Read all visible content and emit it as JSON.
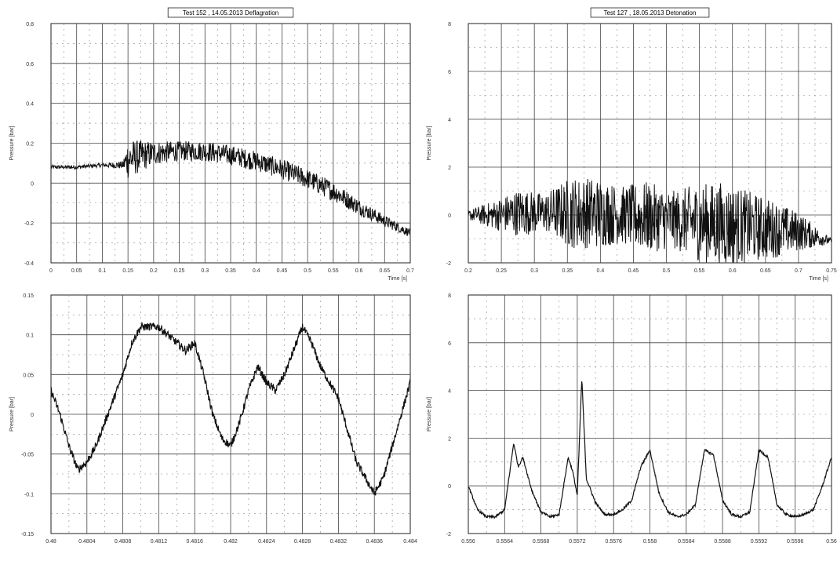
{
  "chart_data": [
    {
      "type": "line",
      "title": "Test 152 , 14.05.2013 Deflagration",
      "xlabel": "Time [s]",
      "ylabel": "Pressure [bar]",
      "xlim": [
        0,
        0.7
      ],
      "ylim": [
        -0.4,
        0.8
      ],
      "x_ticks": [
        "0",
        "0.05",
        "0.1",
        "0.15",
        "0.2",
        "0.25",
        "0.3",
        "0.35",
        "0.4",
        "0.45",
        "0.5",
        "0.55",
        "0.6",
        "0.65",
        "0.7"
      ],
      "y_ticks": [
        "0.8",
        "0.6",
        "0.4",
        "0.2",
        "0",
        "-0.2",
        "-0.4"
      ],
      "grid": true,
      "series": [
        {
          "x": [
            0,
            0.05,
            0.1,
            0.14,
            0.15,
            0.2,
            0.25,
            0.3,
            0.35,
            0.4,
            0.45,
            0.5,
            0.55,
            0.6,
            0.65,
            0.7
          ],
          "y": [
            0.08,
            0.08,
            0.09,
            0.09,
            0.12,
            0.15,
            0.16,
            0.16,
            0.14,
            0.11,
            0.07,
            0.02,
            -0.04,
            -0.12,
            -0.19,
            -0.25
          ],
          "noise": [
            0.01,
            0.01,
            0.01,
            0.02,
            0.1,
            0.06,
            0.05,
            0.05,
            0.05,
            0.05,
            0.05,
            0.05,
            0.05,
            0.04,
            0.03,
            0.02
          ]
        }
      ]
    },
    {
      "type": "line",
      "title": "Test 127 , 18.05.2013 Detonation",
      "xlabel": "Time [s]",
      "ylabel": "Pressure [bar]",
      "xlim": [
        0.2,
        0.77
      ],
      "ylim": [
        -2,
        8
      ],
      "x_ticks": [
        "0.2",
        "0.25",
        "0.3",
        "0.35",
        "0.4",
        "0.45",
        "0.5",
        "0.55",
        "0.6",
        "0.65",
        "0.7",
        "0.75"
      ],
      "y_ticks": [
        "8",
        "6",
        "4",
        "2",
        "0",
        "-2"
      ],
      "grid": true,
      "series": [
        {
          "x": [
            0.2,
            0.24,
            0.28,
            0.32,
            0.36,
            0.4,
            0.44,
            0.48,
            0.52,
            0.56,
            0.6,
            0.64,
            0.68,
            0.72,
            0.77
          ],
          "y": [
            0,
            0,
            0.1,
            0.1,
            0.1,
            0.1,
            0,
            -0.1,
            -0.2,
            -0.3,
            -0.4,
            -0.5,
            -0.6,
            -0.7,
            -1.1
          ],
          "noise": [
            0.2,
            0.6,
            1.0,
            0.8,
            1.5,
            1.5,
            1.2,
            1.5,
            1.2,
            1.6,
            1.8,
            1.5,
            1.2,
            0.8,
            0.1
          ]
        }
      ]
    },
    {
      "type": "line",
      "title": "",
      "xlabel": "",
      "ylabel": "Pressure [bar]",
      "xlim": [
        0.48,
        0.484
      ],
      "ylim": [
        -0.15,
        0.15
      ],
      "x_ticks": [
        "0.48",
        "0.4804",
        "0.4808",
        "0.4812",
        "0.4816",
        "0.482",
        "0.4824",
        "0.4828",
        "0.4832",
        "0.4836",
        "0.484"
      ],
      "y_ticks": [
        "0.15",
        "0.1",
        "0.05",
        "0",
        "-0.05",
        "-0.1",
        "-0.15"
      ],
      "grid": true,
      "series": [
        {
          "x": [
            0.48,
            0.4801,
            0.4802,
            0.4803,
            0.4804,
            0.4805,
            0.4806,
            0.4807,
            0.4808,
            0.4809,
            0.481,
            0.4811,
            0.4812,
            0.4813,
            0.4814,
            0.4815,
            0.4816,
            0.4817,
            0.4818,
            0.4819,
            0.482,
            0.4821,
            0.4822,
            0.4823,
            0.4824,
            0.4825,
            0.4826,
            0.4827,
            0.4828,
            0.4829,
            0.483,
            0.4831,
            0.4832,
            0.4833,
            0.4834,
            0.4835,
            0.4836,
            0.4837,
            0.4838,
            0.4839,
            0.484
          ],
          "y": [
            0.03,
            0.0,
            -0.04,
            -0.07,
            -0.06,
            -0.04,
            -0.01,
            0.02,
            0.05,
            0.09,
            0.11,
            0.11,
            0.11,
            0.1,
            0.09,
            0.08,
            0.09,
            0.05,
            0.0,
            -0.03,
            -0.04,
            -0.01,
            0.03,
            0.06,
            0.04,
            0.03,
            0.05,
            0.08,
            0.11,
            0.09,
            0.06,
            0.04,
            0.02,
            -0.02,
            -0.06,
            -0.08,
            -0.1,
            -0.08,
            -0.04,
            0.0,
            0.04
          ],
          "noise": [
            0.005,
            0.005,
            0.005,
            0.005,
            0.005,
            0.005,
            0.005,
            0.005,
            0.005,
            0.005,
            0.005,
            0.005,
            0.005,
            0.005,
            0.005,
            0.005,
            0.005,
            0.005,
            0.005,
            0.005,
            0.005,
            0.005,
            0.005,
            0.005,
            0.005,
            0.005,
            0.005,
            0.005,
            0.005,
            0.005,
            0.005,
            0.005,
            0.005,
            0.005,
            0.005,
            0.005,
            0.005,
            0.005,
            0.005,
            0.005,
            0.005
          ]
        }
      ]
    },
    {
      "type": "line",
      "title": "",
      "xlabel": "",
      "ylabel": "Pressure [bar]",
      "xlim": [
        0.556,
        0.56
      ],
      "ylim": [
        -2,
        8
      ],
      "x_ticks": [
        "0.556",
        "0.5564",
        "0.5568",
        "0.5572",
        "0.5576",
        "0.558",
        "0.5584",
        "0.5588",
        "0.5592",
        "0.5596",
        "0.56"
      ],
      "y_ticks": [
        "8",
        "6",
        "4",
        "2",
        "0",
        "-2"
      ],
      "grid": true,
      "series": [
        {
          "x": [
            0.556,
            0.5561,
            0.5562,
            0.5563,
            0.5564,
            0.5565,
            0.55655,
            0.5566,
            0.5567,
            0.5568,
            0.5569,
            0.557,
            0.5571,
            0.55715,
            0.5572,
            0.55725,
            0.5573,
            0.5574,
            0.5575,
            0.5576,
            0.5577,
            0.5578,
            0.5579,
            0.558,
            0.5581,
            0.5582,
            0.5583,
            0.5584,
            0.5585,
            0.5586,
            0.5587,
            0.5588,
            0.5589,
            0.559,
            0.5591,
            0.5592,
            0.5593,
            0.5594,
            0.5595,
            0.5596,
            0.5597,
            0.5598,
            0.5599,
            0.56
          ],
          "y": [
            0,
            -1,
            -1.3,
            -1.3,
            -1.0,
            1.8,
            0.8,
            1.2,
            -0.2,
            -1.1,
            -1.3,
            -1.2,
            1.2,
            0.6,
            -0.4,
            4.5,
            0.3,
            -0.7,
            -1.2,
            -1.2,
            -1.0,
            -0.6,
            0.8,
            1.5,
            -0.3,
            -1.1,
            -1.3,
            -1.2,
            -0.8,
            1.5,
            1.3,
            -0.6,
            -1.2,
            -1.3,
            -1.1,
            1.5,
            1.2,
            -0.8,
            -1.2,
            -1.3,
            -1.2,
            -1.0,
            0.0,
            1.2
          ],
          "noise": [
            0.05,
            0.05,
            0.05,
            0.05,
            0.05,
            0.05,
            0.05,
            0.05,
            0.05,
            0.05,
            0.05,
            0.05,
            0.05,
            0.05,
            0.05,
            0.05,
            0.05,
            0.05,
            0.05,
            0.05,
            0.05,
            0.05,
            0.05,
            0.05,
            0.05,
            0.05,
            0.05,
            0.05,
            0.05,
            0.05,
            0.05,
            0.05,
            0.05,
            0.05,
            0.05,
            0.05,
            0.05,
            0.05,
            0.05,
            0.05,
            0.05,
            0.05,
            0.05,
            0.05
          ]
        }
      ]
    }
  ]
}
